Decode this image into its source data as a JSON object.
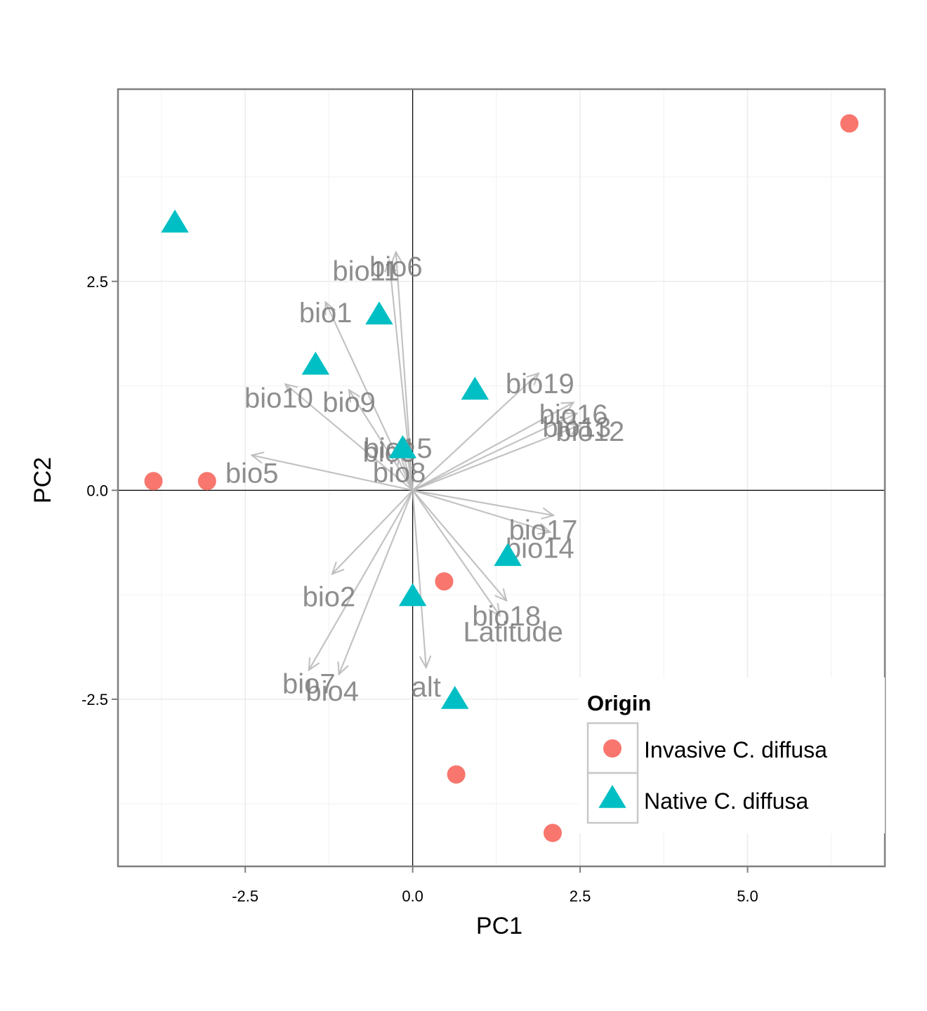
{
  "chart_data": {
    "type": "scatter",
    "title": "",
    "xlabel": "PC1",
    "ylabel": "PC2",
    "xlim": [
      -4.4,
      7.05
    ],
    "ylim": [
      -4.5,
      4.8
    ],
    "xticks": [
      -2.5,
      0.0,
      2.5,
      5.0
    ],
    "xtick_labels": [
      "-2.5",
      "0.0",
      "2.5",
      "5.0"
    ],
    "yticks": [
      -2.5,
      0.0,
      2.5
    ],
    "ytick_labels": [
      "-2.5",
      "0.0",
      "2.5"
    ],
    "grid": true,
    "reference_lines": {
      "x": 0,
      "y": 0
    },
    "legend": {
      "title": "Origin",
      "placement": "bottom-right"
    },
    "series": [
      {
        "name": "Invasive C. diffusa",
        "marker": "circle",
        "color": "#F8766D",
        "points": [
          {
            "x": -3.87,
            "y": 0.11
          },
          {
            "x": -3.07,
            "y": 0.11
          },
          {
            "x": 0.47,
            "y": -1.09
          },
          {
            "x": 0.65,
            "y": -3.4
          },
          {
            "x": 2.09,
            "y": -4.1
          },
          {
            "x": 6.52,
            "y": 4.39
          }
        ]
      },
      {
        "name": "Native C. diffusa",
        "marker": "triangle",
        "color": "#00BFC4",
        "points": [
          {
            "x": -3.55,
            "y": 3.2
          },
          {
            "x": -0.5,
            "y": 2.1
          },
          {
            "x": -1.45,
            "y": 1.5
          },
          {
            "x": 0.93,
            "y": 1.2
          },
          {
            "x": -0.15,
            "y": 0.5
          },
          {
            "x": 1.42,
            "y": -0.79
          },
          {
            "x": 0.0,
            "y": -1.27
          },
          {
            "x": 0.63,
            "y": -2.5
          }
        ]
      }
    ],
    "arrows": [
      {
        "label": "bio6",
        "x": -0.25,
        "y": 2.85
      },
      {
        "label": "bio11",
        "x": -0.35,
        "y": 2.75
      },
      {
        "label": "bio1",
        "x": -1.3,
        "y": 2.25
      },
      {
        "label": "bio10",
        "x": -1.9,
        "y": 1.27
      },
      {
        "label": "bio9",
        "x": -0.95,
        "y": 1.2
      },
      {
        "label": "bio19",
        "x": 1.88,
        "y": 1.4
      },
      {
        "label": "bio16",
        "x": 2.4,
        "y": 1.05
      },
      {
        "label": "bio13",
        "x": 2.45,
        "y": 0.92
      },
      {
        "label": "bio12",
        "x": 2.5,
        "y": 0.78
      },
      {
        "label": "bio15",
        "x": -0.12,
        "y": 0.62
      },
      {
        "label": "bio3",
        "x": -0.18,
        "y": 0.55
      },
      {
        "label": "bio8",
        "x": -0.2,
        "y": 0.45
      },
      {
        "label": "bio5",
        "x": -2.4,
        "y": 0.42
      },
      {
        "label": "bio17",
        "x": 2.1,
        "y": -0.3
      },
      {
        "label": "bio14",
        "x": 2.05,
        "y": -0.5
      },
      {
        "label": "bio18",
        "x": 1.4,
        "y": -1.32
      },
      {
        "label": "Latitude",
        "x": 1.3,
        "y": -1.5
      },
      {
        "label": "bio2",
        "x": -1.2,
        "y": -1.0
      },
      {
        "label": "bio7",
        "x": -1.55,
        "y": -2.15
      },
      {
        "label": "bio4",
        "x": -1.1,
        "y": -2.2
      },
      {
        "label": "alt",
        "x": 0.2,
        "y": -2.12
      }
    ],
    "arrow_labels": [
      {
        "text": "bio6",
        "x": -0.25,
        "y": 2.65
      },
      {
        "text": "bio11",
        "x": -0.7,
        "y": 2.6
      },
      {
        "text": "bio1",
        "x": -1.3,
        "y": 2.1
      },
      {
        "text": "bio10",
        "x": -2.0,
        "y": 1.08
      },
      {
        "text": "bio9",
        "x": -0.95,
        "y": 1.03
      },
      {
        "text": "bio19",
        "x": 1.9,
        "y": 1.25
      },
      {
        "text": "bio16",
        "x": 2.4,
        "y": 0.88
      },
      {
        "text": "bio13",
        "x": 2.45,
        "y": 0.73
      },
      {
        "text": "bio12",
        "x": 2.65,
        "y": 0.68
      },
      {
        "text": "bio15",
        "x": -0.22,
        "y": 0.48
      },
      {
        "text": "bio3",
        "x": -0.35,
        "y": 0.43
      },
      {
        "text": "bio8",
        "x": -0.2,
        "y": 0.19
      },
      {
        "text": "bio5",
        "x": -2.4,
        "y": 0.18
      },
      {
        "text": "bio17",
        "x": 1.95,
        "y": -0.5
      },
      {
        "text": "bio14",
        "x": 1.9,
        "y": -0.72
      },
      {
        "text": "bio18",
        "x": 1.4,
        "y": -1.53
      },
      {
        "text": "Latitude",
        "x": 1.5,
        "y": -1.72
      },
      {
        "text": "bio2",
        "x": -1.25,
        "y": -1.3
      },
      {
        "text": "bio7",
        "x": -1.55,
        "y": -2.34
      },
      {
        "text": "bio4",
        "x": -1.2,
        "y": -2.43
      },
      {
        "text": "alt",
        "x": 0.2,
        "y": -2.38
      }
    ]
  }
}
